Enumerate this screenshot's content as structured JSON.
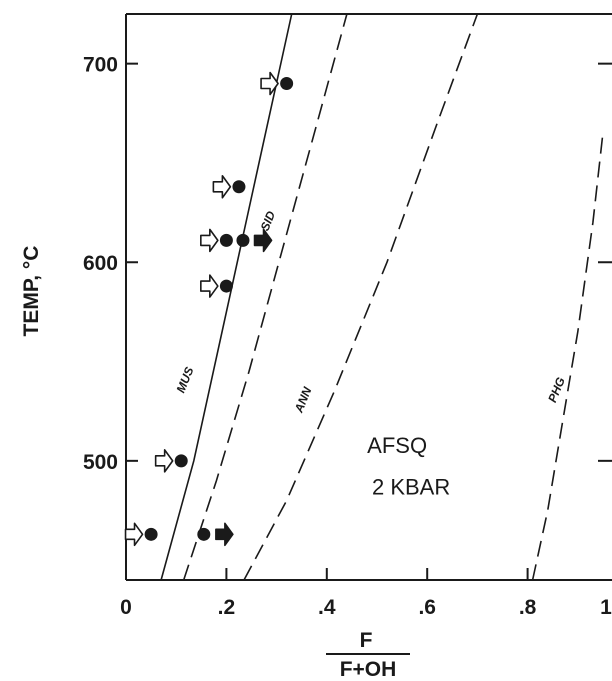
{
  "chart_data": {
    "type": "line",
    "xlabel_numerator": "F",
    "xlabel_denominator": "F+OH",
    "ylabel": "TEMP, °C",
    "xlim": [
      0,
      1
    ],
    "ylim": [
      440,
      725
    ],
    "x_ticks": [
      {
        "value": 0,
        "label": "0"
      },
      {
        "value": 0.2,
        "label": ".2"
      },
      {
        "value": 0.4,
        "label": ".4"
      },
      {
        "value": 0.6,
        "label": ".6"
      },
      {
        "value": 0.8,
        "label": ".8"
      },
      {
        "value": 1.0,
        "label": "1"
      }
    ],
    "y_ticks": [
      {
        "value": 500,
        "label": "500"
      },
      {
        "value": 600,
        "label": "600"
      },
      {
        "value": 700,
        "label": "700"
      }
    ],
    "series": [
      {
        "name": "MUS",
        "style": "solid",
        "x": [
          0.07,
          0.135,
          0.2,
          0.265,
          0.33
        ],
        "y": [
          440,
          500,
          575,
          650,
          725
        ],
        "label_at": {
          "x": 0.125,
          "y": 540
        }
      },
      {
        "name": "SID",
        "style": "dashed",
        "x": [
          0.115,
          0.18,
          0.245,
          0.31,
          0.375,
          0.44
        ],
        "y": [
          440,
          490,
          545,
          605,
          665,
          725
        ],
        "label_at": {
          "x": 0.29,
          "y": 620
        }
      },
      {
        "name": "ANN",
        "style": "dashed",
        "x": [
          0.235,
          0.32,
          0.415,
          0.52,
          0.62,
          0.7
        ],
        "y": [
          440,
          480,
          535,
          600,
          670,
          725
        ],
        "label_at": {
          "x": 0.36,
          "y": 530
        }
      },
      {
        "name": "PHG",
        "style": "dashed",
        "x": [
          0.81,
          0.84,
          0.87,
          0.9,
          0.93,
          0.95
        ],
        "y": [
          440,
          475,
          520,
          565,
          620,
          665
        ],
        "label_at": {
          "x": 0.865,
          "y": 535
        }
      }
    ],
    "points": [
      {
        "x": 0.32,
        "y": 690
      },
      {
        "x": 0.225,
        "y": 638
      },
      {
        "x": 0.2,
        "y": 611
      },
      {
        "x": 0.233,
        "y": 611
      },
      {
        "x": 0.2,
        "y": 588
      },
      {
        "x": 0.11,
        "y": 500
      },
      {
        "x": 0.05,
        "y": 463
      },
      {
        "x": 0.155,
        "y": 463
      }
    ],
    "arrows": [
      {
        "x": 0.285,
        "y": 690,
        "filled": false
      },
      {
        "x": 0.19,
        "y": 638,
        "filled": false
      },
      {
        "x": 0.165,
        "y": 611,
        "filled": false
      },
      {
        "x": 0.272,
        "y": 611,
        "filled": true
      },
      {
        "x": 0.165,
        "y": 588,
        "filled": false
      },
      {
        "x": 0.075,
        "y": 500,
        "filled": false
      },
      {
        "x": 0.015,
        "y": 463,
        "filled": false
      },
      {
        "x": 0.195,
        "y": 463,
        "filled": true
      }
    ],
    "annotation": {
      "line1": "AFSQ",
      "line2": "2 KBAR",
      "x": 0.56,
      "y1": 504,
      "y2": 483
    },
    "grid": false
  }
}
